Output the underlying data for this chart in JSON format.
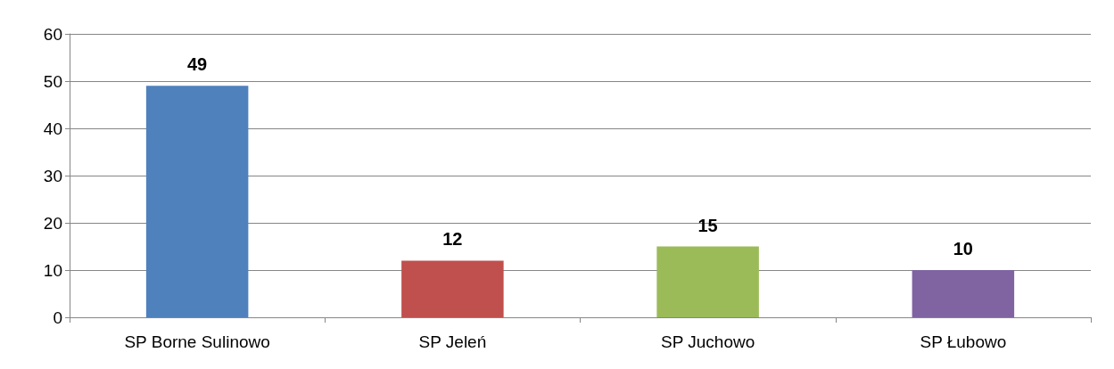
{
  "chart_data": {
    "type": "bar",
    "categories": [
      "SP Borne Sulinowo",
      "SP Jeleń",
      "SP Juchowo",
      "SP Łubowo"
    ],
    "values": [
      49,
      12,
      15,
      10
    ],
    "colors": [
      "#4f81bd",
      "#c0504d",
      "#9bbb59",
      "#8064a2"
    ],
    "ylim": [
      0,
      60
    ],
    "yticks": [
      0,
      10,
      20,
      30,
      40,
      50,
      60
    ],
    "grid": "y",
    "data_labels": true
  }
}
